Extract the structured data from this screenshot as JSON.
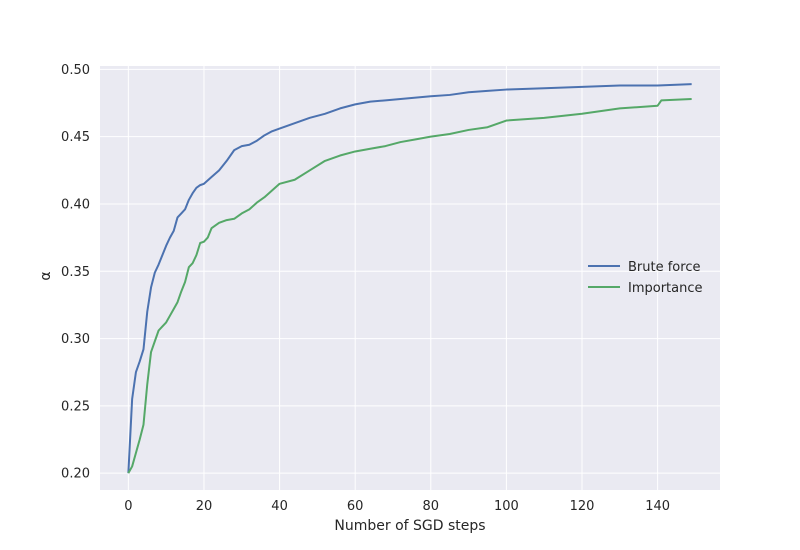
{
  "chart_data": {
    "type": "line",
    "title": "",
    "xlabel": "Number of SGD steps",
    "ylabel": "α",
    "xlim": [
      -7.5,
      156.5
    ],
    "ylim": [
      0.1875,
      0.5025
    ],
    "xticks": [
      0,
      20,
      40,
      60,
      80,
      100,
      120,
      140
    ],
    "yticks": [
      0.2,
      0.25,
      0.3,
      0.35,
      0.4,
      0.45,
      0.5
    ],
    "ytick_labels": [
      "0.20",
      "0.25",
      "0.30",
      "0.35",
      "0.40",
      "0.45",
      "0.50"
    ],
    "grid": true,
    "legend_position": "center-right",
    "series": [
      {
        "name": "Brute force",
        "color": "#4c72b0",
        "x": [
          0,
          1,
          2,
          3,
          4,
          5,
          6,
          7,
          8,
          9,
          10,
          11,
          12,
          13,
          14,
          15,
          16,
          17,
          18,
          19,
          20,
          22,
          24,
          26,
          28,
          30,
          32,
          34,
          36,
          38,
          40,
          44,
          48,
          52,
          56,
          60,
          64,
          68,
          72,
          76,
          80,
          85,
          90,
          95,
          100,
          110,
          120,
          130,
          140,
          149
        ],
        "values": [
          0.2,
          0.255,
          0.275,
          0.283,
          0.292,
          0.32,
          0.338,
          0.349,
          0.355,
          0.362,
          0.369,
          0.375,
          0.38,
          0.39,
          0.393,
          0.396,
          0.403,
          0.408,
          0.412,
          0.414,
          0.415,
          0.42,
          0.425,
          0.432,
          0.44,
          0.443,
          0.444,
          0.447,
          0.451,
          0.454,
          0.456,
          0.46,
          0.464,
          0.467,
          0.471,
          0.474,
          0.476,
          0.477,
          0.478,
          0.479,
          0.48,
          0.481,
          0.483,
          0.484,
          0.485,
          0.486,
          0.487,
          0.488,
          0.488,
          0.489
        ]
      },
      {
        "name": "Importance",
        "color": "#55a868",
        "x": [
          0,
          1,
          2,
          3,
          4,
          5,
          6,
          7,
          8,
          9,
          10,
          11,
          12,
          13,
          14,
          15,
          16,
          17,
          18,
          19,
          20,
          21,
          22,
          24,
          26,
          28,
          30,
          32,
          34,
          36,
          38,
          40,
          44,
          48,
          52,
          56,
          60,
          64,
          68,
          72,
          76,
          80,
          85,
          90,
          95,
          100,
          110,
          120,
          130,
          140,
          141,
          149
        ],
        "values": [
          0.2,
          0.205,
          0.215,
          0.225,
          0.236,
          0.266,
          0.29,
          0.298,
          0.306,
          0.309,
          0.312,
          0.317,
          0.322,
          0.327,
          0.335,
          0.342,
          0.353,
          0.356,
          0.362,
          0.371,
          0.372,
          0.375,
          0.382,
          0.386,
          0.388,
          0.389,
          0.393,
          0.396,
          0.401,
          0.405,
          0.41,
          0.415,
          0.418,
          0.425,
          0.432,
          0.436,
          0.439,
          0.441,
          0.443,
          0.446,
          0.448,
          0.45,
          0.452,
          0.455,
          0.457,
          0.462,
          0.464,
          0.467,
          0.471,
          0.473,
          0.477,
          0.478
        ]
      }
    ]
  }
}
